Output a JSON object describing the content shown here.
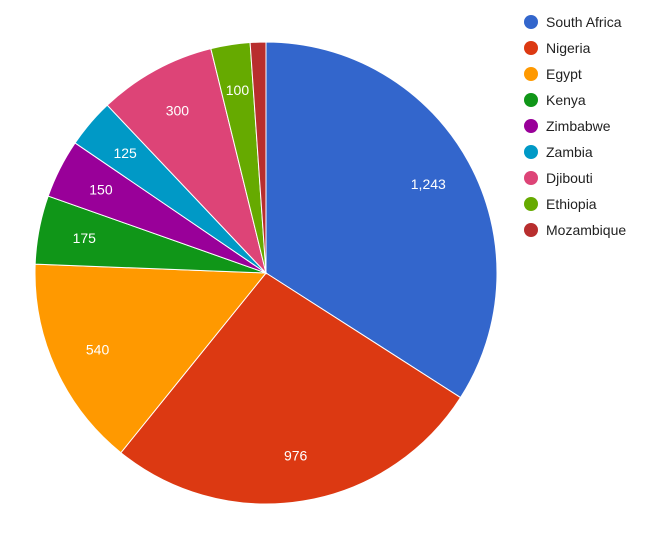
{
  "chart_data": {
    "type": "pie",
    "title": "",
    "legend_position": "right",
    "slices": [
      {
        "name": "South Africa",
        "value": 1243,
        "label": "1,243",
        "color": "#3366cc"
      },
      {
        "name": "Nigeria",
        "value": 976,
        "label": "976",
        "color": "#dc3912"
      },
      {
        "name": "Egypt",
        "value": 540,
        "label": "540",
        "color": "#ff9900"
      },
      {
        "name": "Kenya",
        "value": 175,
        "label": "175",
        "color": "#109618"
      },
      {
        "name": "Zimbabwe",
        "value": 150,
        "label": "150",
        "color": "#990099"
      },
      {
        "name": "Zambia",
        "value": 125,
        "label": "125",
        "color": "#0099c6"
      },
      {
        "name": "Djibouti",
        "value": 300,
        "label": "300",
        "color": "#dd4477"
      },
      {
        "name": "Ethiopia",
        "value": 100,
        "label": "100",
        "color": "#66aa00"
      },
      {
        "name": "Mozambique",
        "value": 40,
        "label": "",
        "color": "#b82e2e"
      }
    ]
  }
}
